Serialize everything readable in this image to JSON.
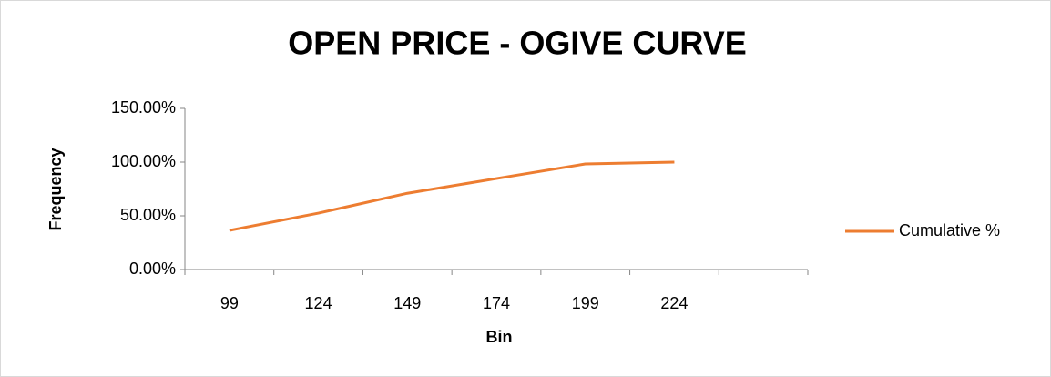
{
  "chart_data": {
    "type": "line",
    "title": "OPEN PRICE - OGIVE CURVE",
    "x_label": "Bin",
    "y_label": "Frequency",
    "categories": [
      "99",
      "124",
      "149",
      "174",
      "199",
      "224",
      null
    ],
    "series": [
      {
        "name": "Cumulative %",
        "color": "#ed7d31",
        "values": [
          36.4,
          52.5,
          71,
          84.7,
          98.3,
          100,
          null
        ]
      }
    ],
    "ylim": [
      0,
      150
    ],
    "yticks": [
      {
        "value": 0,
        "label": "0.00%"
      },
      {
        "value": 50,
        "label": "50.00%"
      },
      {
        "value": 100,
        "label": "100.00%"
      },
      {
        "value": 150,
        "label": "150.00%"
      }
    ],
    "grid": false,
    "legend": "right"
  }
}
